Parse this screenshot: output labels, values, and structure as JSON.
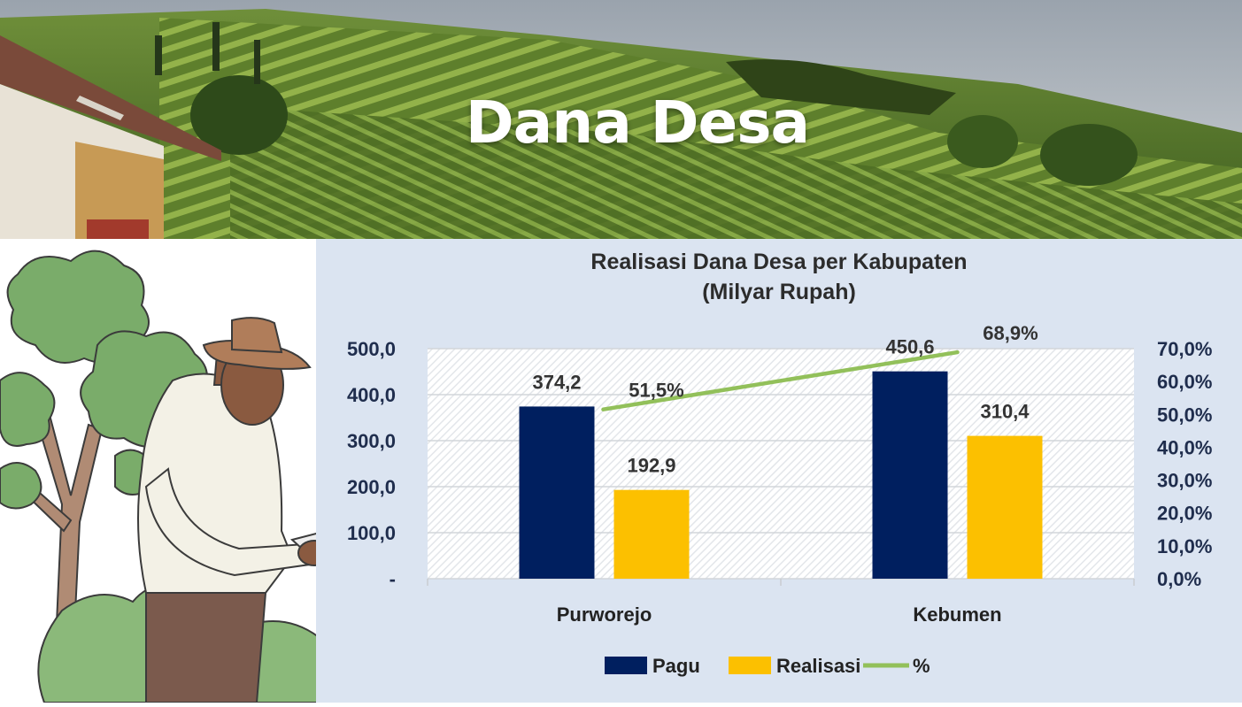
{
  "header": {
    "title": "Dana Desa"
  },
  "colors": {
    "pagu": "#001f5f",
    "realisasi": "#fcc000",
    "percent_line": "#92c05a",
    "panel_bg": "#dbe4f1"
  },
  "chart_data": {
    "type": "bar",
    "title": "Realisasi Dana Desa per Kabupaten",
    "subtitle": "(Milyar Rupah)",
    "categories": [
      "Purworejo",
      "Kebumen"
    ],
    "series": [
      {
        "name": "Pagu",
        "type": "bar",
        "axis": "left",
        "values": [
          374.2,
          450.6
        ],
        "labels": [
          "374,2",
          "450,6"
        ]
      },
      {
        "name": "Realisasi",
        "type": "bar",
        "axis": "left",
        "values": [
          192.9,
          310.4
        ],
        "labels": [
          "192,9",
          "310,4"
        ]
      },
      {
        "name": "%",
        "type": "line",
        "axis": "right",
        "values": [
          51.5,
          68.9
        ],
        "labels": [
          "51,5%",
          "68,9%"
        ]
      }
    ],
    "y_left": {
      "min": 0,
      "max": 500,
      "ticks": [
        "-",
        "100,0",
        "200,0",
        "300,0",
        "400,0",
        "500,0"
      ]
    },
    "y_right": {
      "min": 0,
      "max": 70,
      "ticks": [
        "0,0%",
        "10,0%",
        "20,0%",
        "30,0%",
        "40,0%",
        "50,0%",
        "60,0%",
        "70,0%"
      ]
    },
    "grid": true,
    "legend_position": "bottom"
  }
}
